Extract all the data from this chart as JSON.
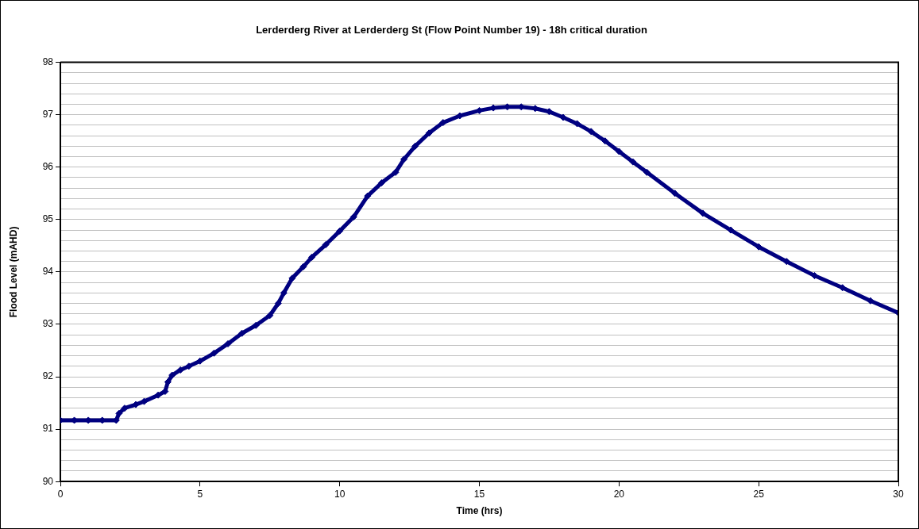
{
  "chart_data": {
    "type": "line",
    "title": "Lerderderg River at Lerderderg St (Flow Point Number 19) - 18h critical duration",
    "xlabel": "Time (hrs)",
    "ylabel": "Flood Level (mAHD)",
    "series": [
      {
        "color": "#000080",
        "x": [
          0,
          0.5,
          1,
          1.5,
          2,
          2.1,
          2.3,
          2.7,
          3,
          3.5,
          3.75,
          3.85,
          4,
          4.3,
          4.6,
          5,
          5.5,
          6,
          6.5,
          7,
          7.5,
          7.8,
          8,
          8.3,
          8.7,
          9,
          9.5,
          10,
          10.5,
          11,
          11.5,
          12,
          12.3,
          12.7,
          13.2,
          13.7,
          14.3,
          15,
          15.5,
          16,
          16.5,
          17,
          17.5,
          18,
          18.5,
          19,
          19.5,
          20,
          20.5,
          21,
          22,
          23,
          24,
          25,
          26,
          27,
          28,
          29,
          30
        ],
        "values": [
          91.17,
          91.17,
          91.17,
          91.17,
          91.17,
          91.3,
          91.4,
          91.47,
          91.53,
          91.65,
          91.72,
          91.9,
          92.03,
          92.13,
          92.2,
          92.3,
          92.45,
          92.63,
          92.83,
          92.98,
          93.17,
          93.4,
          93.6,
          93.88,
          94.1,
          94.28,
          94.52,
          94.78,
          95.05,
          95.45,
          95.7,
          95.9,
          96.15,
          96.4,
          96.65,
          96.85,
          96.98,
          97.08,
          97.13,
          97.15,
          97.15,
          97.12,
          97.06,
          96.95,
          96.83,
          96.68,
          96.5,
          96.3,
          96.1,
          95.9,
          95.5,
          95.12,
          94.8,
          94.48,
          94.2,
          93.93,
          93.7,
          93.45,
          93.22
        ]
      }
    ],
    "xlim": [
      0,
      30
    ],
    "xticks": [
      0,
      5,
      10,
      15,
      20,
      25,
      30
    ],
    "ylim": [
      90,
      98
    ],
    "yticks": [
      90,
      {
        "value": 90.2,
        "label": null
      },
      {
        "value": 90.4,
        "label": null
      },
      {
        "value": 90.6,
        "label": null
      },
      {
        "value": 90.8,
        "label": null
      },
      91,
      {
        "value": 91.2,
        "label": null
      },
      {
        "value": 91.4,
        "label": null
      },
      {
        "value": 91.6,
        "label": null
      },
      {
        "value": 91.8,
        "label": null
      },
      92,
      {
        "value": 92.2,
        "label": null
      },
      {
        "value": 92.4,
        "label": null
      },
      {
        "value": 92.6,
        "label": null
      },
      {
        "value": 92.8,
        "label": null
      },
      93,
      {
        "value": 93.2,
        "label": null
      },
      {
        "value": 93.4,
        "label": null
      },
      {
        "value": 93.6,
        "label": null
      },
      {
        "value": 93.8,
        "label": null
      },
      94,
      {
        "value": 94.2,
        "label": null
      },
      {
        "value": 94.4,
        "label": null
      },
      {
        "value": 94.6,
        "label": null
      },
      {
        "value": 94.8,
        "label": null
      },
      95,
      {
        "value": 95.2,
        "label": null
      },
      {
        "value": 95.4,
        "label": null
      },
      {
        "value": 95.6,
        "label": null
      },
      {
        "value": 95.8,
        "label": null
      },
      96,
      {
        "value": 96.2,
        "label": null
      },
      {
        "value": 96.4,
        "label": null
      },
      {
        "value": 96.6,
        "label": null
      },
      {
        "value": 96.8,
        "label": null
      },
      97,
      {
        "value": 97.2,
        "label": null
      },
      {
        "value": 97.4,
        "label": null
      },
      {
        "value": 97.6,
        "label": null
      },
      {
        "value": 97.8,
        "label": null
      },
      98
    ],
    "grid": "y",
    "legend": false,
    "marker": "diamond",
    "line_style": "solid"
  }
}
